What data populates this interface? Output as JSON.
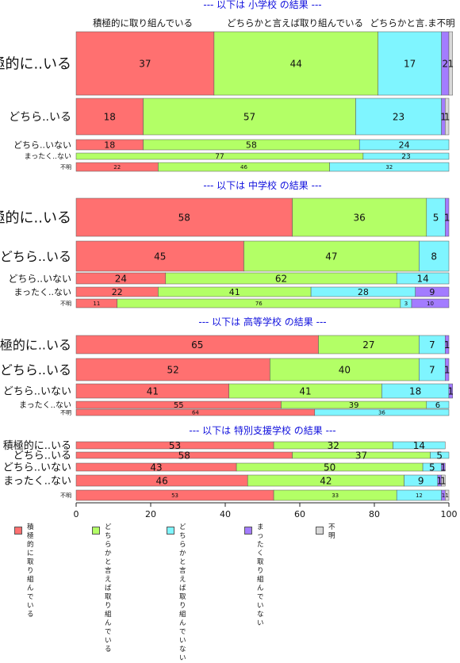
{
  "chart_data": {
    "type": "bar",
    "orientation": "horizontal",
    "stacked": true,
    "xlim": [
      0,
      100
    ],
    "xticks": [
      0,
      20,
      40,
      60,
      80,
      100
    ],
    "category_labels": [
      "積極的に取り組んでいる",
      "どちらかと言えば取り組んでいる",
      "どちらかと言えば取り組んでいない",
      "まったく取り組んでいない",
      "不明"
    ],
    "colors": [
      "#ff7070",
      "#b3ff66",
      "#7ff5ff",
      "#a37cff",
      "#d9d9d9"
    ],
    "top_labels": [
      "積極的に取り組んでいる",
      "どちらかと言えば取り組んでいる",
      "どちらかと言.ま不明"
    ],
    "panels": [
      {
        "title": "--- 以下は 小学校 の結果 ---",
        "rows": [
          {
            "label": "積極的に..いる",
            "values": [
              37,
              44,
              17,
              2,
              1
            ]
          },
          {
            "label": "どちら..いる",
            "values": [
              18,
              57,
              23,
              1,
              1
            ]
          },
          {
            "label": "どちら..いない",
            "values": [
              18,
              58,
              24,
              0,
              0
            ]
          },
          {
            "label": "まったく..ない",
            "values": [
              0,
              77,
              23,
              0,
              0
            ]
          },
          {
            "label": "不明",
            "values": [
              22,
              46,
              32,
              0,
              0
            ]
          }
        ]
      },
      {
        "title": "--- 以下は 中学校 の結果 ---",
        "rows": [
          {
            "label": "積極的に..いる",
            "values": [
              58,
              36,
              5,
              1,
              0
            ]
          },
          {
            "label": "どちら..いる",
            "values": [
              45,
              47,
              8,
              0,
              0
            ]
          },
          {
            "label": "どちら..いない",
            "values": [
              24,
              62,
              14,
              0,
              0
            ]
          },
          {
            "label": "まったく..ない",
            "values": [
              22,
              41,
              28,
              9,
              0
            ]
          },
          {
            "label": "不明",
            "values": [
              11,
              76,
              3,
              10,
              0
            ]
          }
        ]
      },
      {
        "title": "--- 以下は 高等学校 の結果 ---",
        "rows": [
          {
            "label": "積極的に..いる",
            "values": [
              65,
              27,
              7,
              1,
              0
            ]
          },
          {
            "label": "どちら..いる",
            "values": [
              52,
              40,
              7,
              1,
              0
            ]
          },
          {
            "label": "どちら..いない",
            "values": [
              41,
              41,
              18,
              1,
              0
            ]
          },
          {
            "label": "まったく..ない",
            "values": [
              55,
              39,
              6,
              0,
              0
            ]
          },
          {
            "label": "不明",
            "values": [
              64,
              0,
              36,
              0,
              0
            ]
          }
        ]
      },
      {
        "title": "--- 以下は 特別支援学校 の結果 ---",
        "rows": [
          {
            "label": "積極的に..いる",
            "values": [
              53,
              32,
              14,
              0,
              0
            ]
          },
          {
            "label": "どちら..いる",
            "values": [
              58,
              37,
              5,
              0,
              0
            ]
          },
          {
            "label": "どちら..いない",
            "values": [
              43,
              50,
              5,
              1,
              0
            ]
          },
          {
            "label": "まったく..ない",
            "values": [
              46,
              42,
              9,
              1,
              1
            ]
          },
          {
            "label": "不明",
            "values": [
              53,
              33,
              12,
              1,
              1
            ]
          }
        ]
      }
    ],
    "legend": [
      {
        "label": "積極的に\n取り組んでいる"
      },
      {
        "label": "どちらかと言えば\n取り組んでいる"
      },
      {
        "label": "どちらかと言えば\n取り組んでいない"
      },
      {
        "label": "まったく\n取り組んでいない"
      },
      {
        "label": "不明"
      }
    ]
  }
}
